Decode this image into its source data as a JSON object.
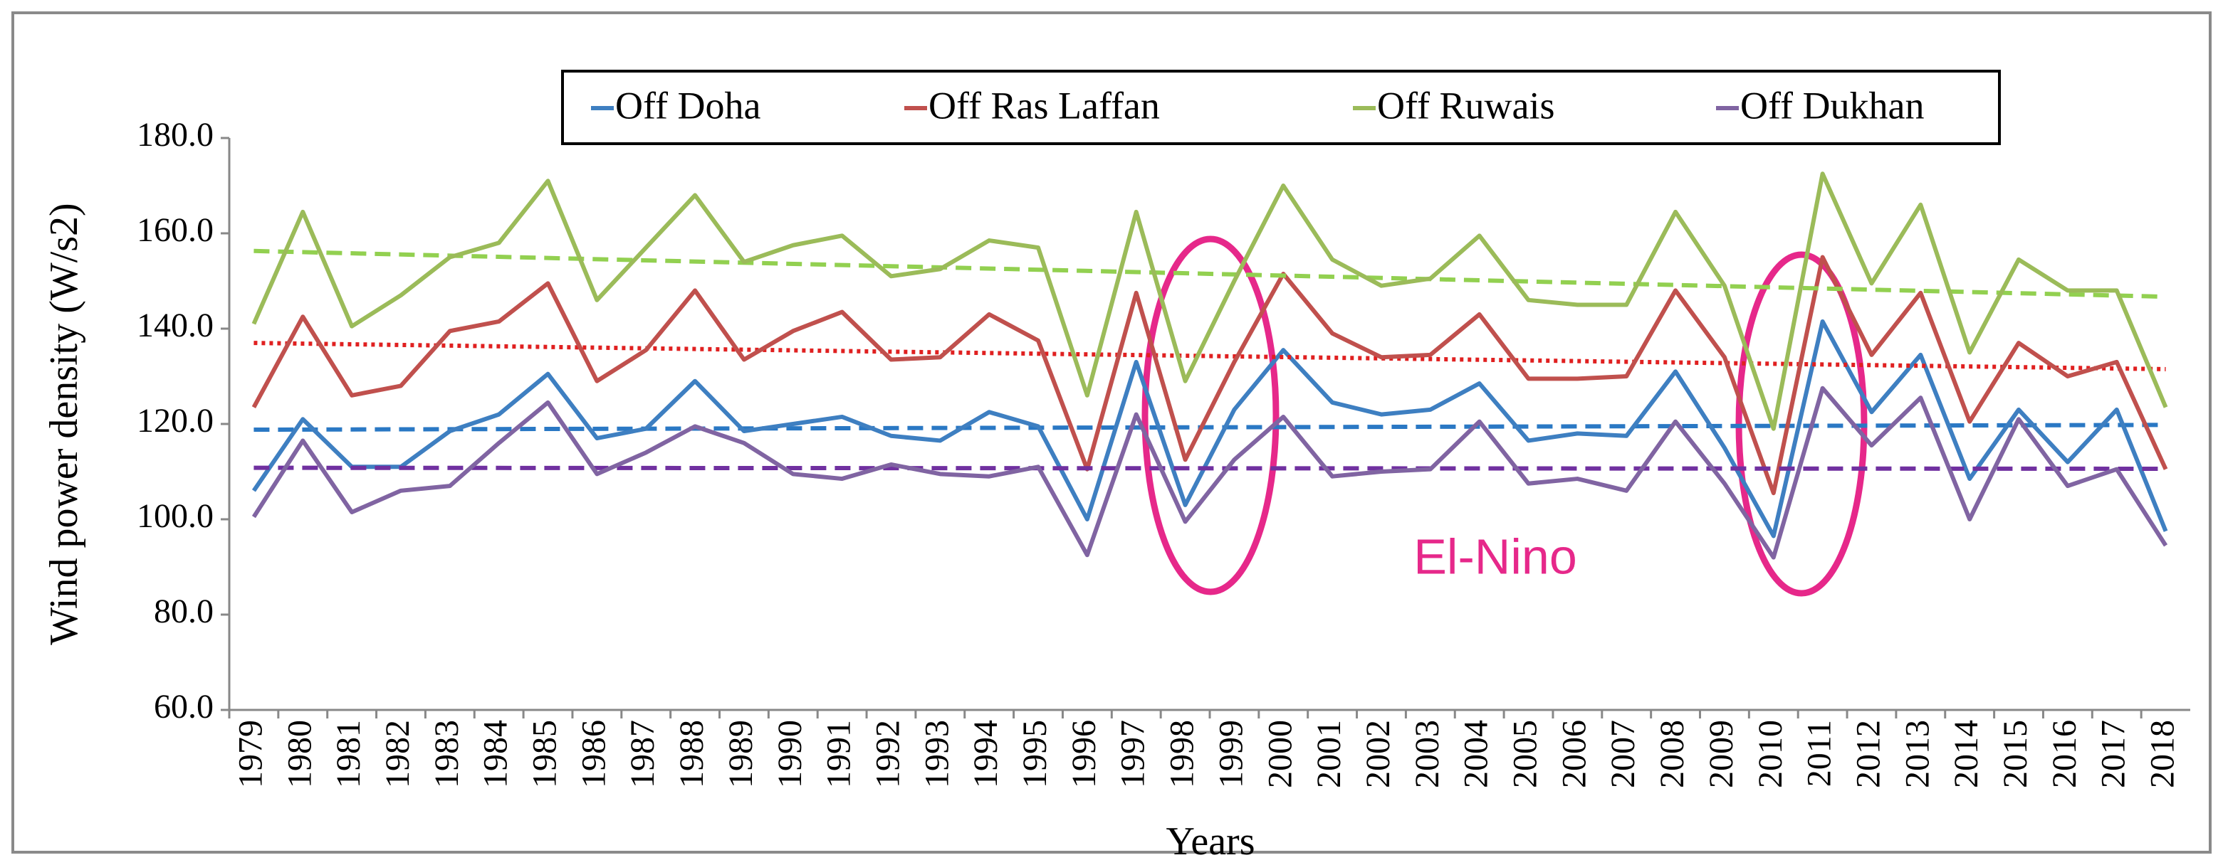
{
  "chart_data": {
    "type": "line",
    "y_label": "Wind power density (W/s2)",
    "x_label": "Years",
    "annotation": "El-Nino",
    "categories": [
      "1979",
      "1980",
      "1981",
      "1982",
      "1983",
      "1984",
      "1985",
      "1986",
      "1987",
      "1988",
      "1989",
      "1990",
      "1991",
      "1992",
      "1993",
      "1994",
      "1995",
      "1996",
      "1997",
      "1998",
      "1999",
      "2000",
      "2001",
      "2002",
      "2003",
      "2004",
      "2005",
      "2006",
      "2007",
      "2008",
      "2009",
      "2010",
      "2011",
      "2012",
      "2013",
      "2014",
      "2015",
      "2016",
      "2017",
      "2018"
    ],
    "ylim": [
      60,
      180
    ],
    "yticks": [
      {
        "value": 60,
        "label": "60.0"
      },
      {
        "value": 80,
        "label": "80.0"
      },
      {
        "value": 100,
        "label": "100.0"
      },
      {
        "value": 120,
        "label": "120.0"
      },
      {
        "value": 140,
        "label": "140.0"
      },
      {
        "value": 160,
        "label": "160.0"
      },
      {
        "value": 180,
        "label": "180.0"
      }
    ],
    "series": [
      {
        "name": "Off Doha",
        "color": "#3e7fc1",
        "trend_color": "#2a78c4",
        "trend_dash": "22 12",
        "trend": [
          118.8,
          119.8
        ],
        "values": [
          106,
          121,
          111,
          111,
          118.5,
          122,
          130.5,
          117,
          119,
          129,
          118.5,
          120,
          121.5,
          117.5,
          116.5,
          122.5,
          119.5,
          100,
          133,
          103,
          123,
          135.5,
          124.5,
          122,
          123,
          128.5,
          116.5,
          118,
          117.5,
          131,
          115,
          96.5,
          141.5,
          122.5,
          134.5,
          108.5,
          123,
          112,
          123,
          97.5
        ]
      },
      {
        "name": "Off Ras Laffan",
        "color": "#c0504d",
        "trend_color": "#e02020",
        "trend_dash": "5 6",
        "trend": [
          137,
          131.5
        ],
        "values": [
          123.5,
          142.5,
          126,
          128,
          139.5,
          141.5,
          149.5,
          129,
          135.5,
          148,
          133.5,
          139.5,
          143.5,
          133.5,
          134,
          143,
          137.5,
          110.5,
          147.5,
          112.5,
          133,
          151.5,
          139,
          134,
          134.5,
          143,
          129.5,
          129.5,
          130,
          148,
          134,
          105.5,
          155,
          134.5,
          147.5,
          120.5,
          137,
          130,
          133,
          110.5
        ]
      },
      {
        "name": "Off Ruwais",
        "color": "#9bbb59",
        "trend_color": "#92d050",
        "trend_dash": "22 12",
        "trend": [
          156.3,
          146.7
        ],
        "values": [
          141,
          164.5,
          140.5,
          147,
          155,
          158,
          171,
          146,
          157,
          168,
          154,
          157.5,
          159.5,
          151,
          152.5,
          158.5,
          157,
          126,
          164.5,
          129,
          150,
          170,
          154.5,
          149,
          150.5,
          159.5,
          146,
          145,
          145,
          164.5,
          149,
          119,
          172.5,
          149.5,
          166,
          135,
          154.5,
          148,
          148,
          123.5
        ]
      },
      {
        "name": "Off Dukhan",
        "color": "#8064a2",
        "trend_color": "#7030a0",
        "trend_dash": "22 12",
        "trend": [
          110.8,
          110.6
        ],
        "values": [
          100.5,
          116.5,
          101.5,
          106,
          107,
          116,
          124.5,
          109.5,
          114,
          119.5,
          116,
          109.5,
          108.5,
          111.5,
          109.5,
          109,
          111,
          92.5,
          122,
          99.5,
          112.5,
          121.5,
          109,
          110,
          110.5,
          120.5,
          107.5,
          108.5,
          106,
          120.5,
          107.5,
          92,
          127.5,
          115.5,
          125.5,
          100,
          121,
          107,
          110.5,
          94.5
        ]
      }
    ]
  }
}
